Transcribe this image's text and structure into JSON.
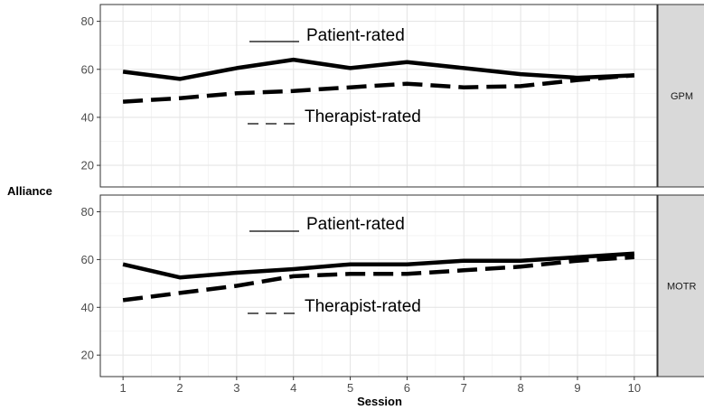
{
  "chart_data": {
    "type": "line",
    "xlabel": "Session",
    "ylabel": "Alliance",
    "x": [
      1,
      2,
      3,
      4,
      5,
      6,
      7,
      8,
      9,
      10
    ],
    "xlim": [
      0.6,
      10.4
    ],
    "ylim": [
      11,
      87
    ],
    "yticks": [
      20,
      40,
      60,
      80
    ],
    "grid": true,
    "panels": [
      {
        "strip": "GPM",
        "series": [
          {
            "name": "Patient-rated",
            "style": "solid",
            "values": [
              59,
              56,
              60.5,
              64,
              60.5,
              63,
              60.5,
              58,
              56.5,
              57.5
            ]
          },
          {
            "name": "Therapist-rated",
            "style": "dashed",
            "values": [
              46.5,
              48,
              50,
              51,
              52.5,
              54,
              52.5,
              53,
              55.5,
              57.5
            ]
          }
        ]
      },
      {
        "strip": "MOTR",
        "series": [
          {
            "name": "Patient-rated",
            "style": "solid",
            "values": [
              58,
              52.5,
              54.5,
              56,
              58,
              58,
              59.5,
              59.5,
              61,
              62.5
            ]
          },
          {
            "name": "Therapist-rated",
            "style": "dashed",
            "values": [
              43,
              46,
              49,
              53,
              54,
              54,
              55.5,
              57,
              59.5,
              61
            ]
          }
        ]
      }
    ]
  }
}
